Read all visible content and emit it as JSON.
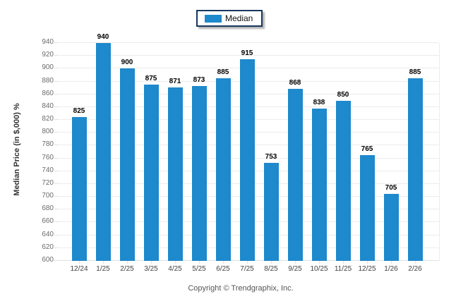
{
  "chart_data": {
    "type": "bar",
    "title": "",
    "categories": [
      "12/24",
      "1/25",
      "2/25",
      "3/25",
      "4/25",
      "5/25",
      "6/25",
      "7/25",
      "8/25",
      "9/25",
      "10/25",
      "11/25",
      "12/25",
      "1/26",
      "2/26"
    ],
    "series": [
      {
        "name": "Median",
        "values": [
          825,
          940,
          900,
          875,
          871,
          873,
          885,
          915,
          753,
          868,
          838,
          850,
          765,
          705,
          885
        ]
      }
    ],
    "xlabel": "",
    "ylabel": "Median Price (in $,000) %",
    "ylim": [
      600,
      940
    ],
    "ytick_step": 20,
    "grid": true,
    "legend_position": "top-center",
    "bar_color": "#1e89cc",
    "value_labels_shown": true
  },
  "legend": {
    "label": "Median"
  },
  "footer": {
    "copyright": "Copyright © Trendgraphix, Inc."
  },
  "colors": {
    "bar": "#1e89cc",
    "grid": "#ececec",
    "axis_line": "#e0e0e0",
    "y_tick_text": "#6b6b6b",
    "x_tick_text": "#414141",
    "value_label_text": "#000000",
    "legend_border": "#17375e"
  }
}
